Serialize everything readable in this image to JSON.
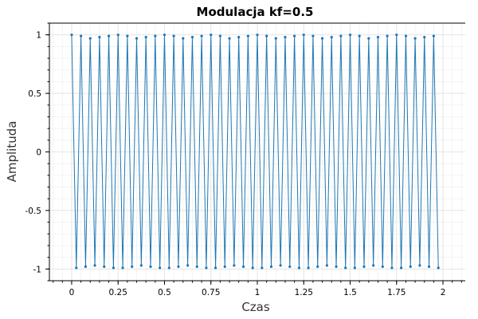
{
  "chart_data": {
    "type": "line",
    "title": "Modulacja kf=0.5",
    "xlabel": "Czas",
    "ylabel": "Amplituda",
    "xlim": [
      -0.12,
      2.12
    ],
    "ylim": [
      -1.1,
      1.1
    ],
    "x_ticks": [
      0,
      0.25,
      0.5,
      0.75,
      1,
      1.25,
      1.5,
      1.75,
      2
    ],
    "x_tick_labels": [
      "0",
      "0.25",
      "0.5",
      "0.75",
      "1",
      "1.25",
      "1.5",
      "1.75",
      "2"
    ],
    "y_ticks": [
      1,
      0.5,
      0,
      -0.5,
      -1
    ],
    "y_tick_labels": [
      "1",
      "0.5",
      "0",
      "-0.5",
      "-1"
    ],
    "grid": true,
    "series": [
      {
        "color": "#1f77b4",
        "marker": "dot",
        "x": [
          0,
          0.025,
          0.05,
          0.075,
          0.1,
          0.125,
          0.15,
          0.175,
          0.2,
          0.225,
          0.25,
          0.275,
          0.3,
          0.325,
          0.35,
          0.375,
          0.4,
          0.425,
          0.45,
          0.475,
          0.5,
          0.525,
          0.55,
          0.575,
          0.6,
          0.625,
          0.65,
          0.675,
          0.7,
          0.725,
          0.75,
          0.775,
          0.8,
          0.825,
          0.85,
          0.875,
          0.9,
          0.925,
          0.95,
          0.975,
          1,
          1.025,
          1.05,
          1.075,
          1.1,
          1.125,
          1.15,
          1.175,
          1.2,
          1.225,
          1.25,
          1.275,
          1.3,
          1.325,
          1.35,
          1.375,
          1.4,
          1.425,
          1.45,
          1.475,
          1.5,
          1.525,
          1.55,
          1.575,
          1.6,
          1.625,
          1.65,
          1.675,
          1.7,
          1.725,
          1.75,
          1.775,
          1.8,
          1.825,
          1.85,
          1.875,
          1.9,
          1.925,
          1.95,
          1.975
        ],
        "y": [
          1,
          -0.99,
          0.99,
          -0.98,
          0.97,
          -0.97,
          0.98,
          -0.98,
          0.99,
          -0.99,
          1,
          -0.99,
          0.99,
          -0.98,
          0.97,
          -0.97,
          0.98,
          -0.98,
          0.99,
          -0.99,
          1,
          -0.99,
          0.99,
          -0.98,
          0.97,
          -0.97,
          0.98,
          -0.98,
          0.99,
          -0.99,
          1,
          -0.99,
          0.99,
          -0.98,
          0.97,
          -0.97,
          0.98,
          -0.98,
          0.99,
          -0.99,
          1,
          -0.99,
          0.99,
          -0.98,
          0.97,
          -0.97,
          0.98,
          -0.98,
          0.99,
          -0.99,
          1,
          -0.99,
          0.99,
          -0.98,
          0.97,
          -0.97,
          0.98,
          -0.98,
          0.99,
          -0.99,
          1,
          -0.99,
          0.99,
          -0.98,
          0.97,
          -0.97,
          0.98,
          -0.98,
          0.99,
          -0.99,
          1,
          -0.99,
          0.99,
          -0.98,
          0.97,
          -0.97,
          0.98,
          -0.98,
          0.99,
          -0.99
        ]
      }
    ]
  }
}
